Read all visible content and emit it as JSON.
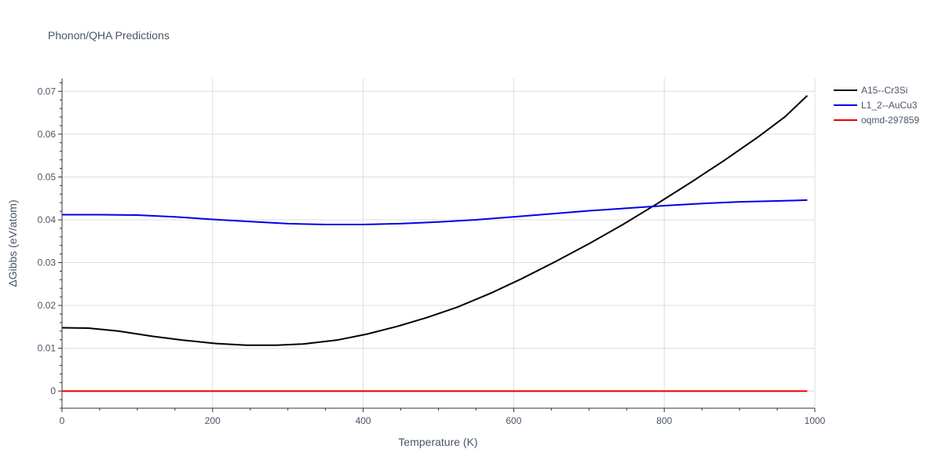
{
  "chart_data": {
    "type": "line",
    "title": "Phonon/QHA Predictions",
    "xlabel": "Temperature (K)",
    "ylabel": "ΔGibbs (eV/atom)",
    "xlim": [
      0,
      1000
    ],
    "ylim": [
      -0.004,
      0.073
    ],
    "x_ticks": [
      0,
      200,
      400,
      600,
      800,
      1000
    ],
    "y_ticks": [
      0,
      0.01,
      0.02,
      0.03,
      0.04,
      0.05,
      0.06,
      0.07
    ],
    "y_tick_labels": [
      "0",
      "0.01",
      "0.02",
      "0.03",
      "0.04",
      "0.05",
      "0.06",
      "0.07"
    ],
    "grid": true,
    "legend_position": "top-right",
    "series": [
      {
        "name": "A15--Cr3Si",
        "color": "#000000",
        "x": [
          0,
          35,
          75,
          120,
          160,
          205,
          245,
          285,
          320,
          365,
          405,
          445,
          485,
          525,
          570,
          610,
          655,
          700,
          745,
          790,
          835,
          880,
          925,
          960,
          990
        ],
        "y": [
          0.0148,
          0.0147,
          0.014,
          0.0128,
          0.0119,
          0.0111,
          0.0107,
          0.0107,
          0.011,
          0.0119,
          0.0133,
          0.0151,
          0.0172,
          0.0196,
          0.0229,
          0.0262,
          0.0302,
          0.0344,
          0.0389,
          0.0437,
          0.0487,
          0.0539,
          0.0594,
          0.064,
          0.069
        ]
      },
      {
        "name": "L1_2--AuCu3",
        "color": "#0000ee",
        "x": [
          0,
          50,
          100,
          150,
          200,
          250,
          300,
          350,
          400,
          450,
          500,
          550,
          600,
          650,
          700,
          750,
          800,
          850,
          900,
          950,
          990
        ],
        "y": [
          0.0412,
          0.0412,
          0.0411,
          0.0407,
          0.0401,
          0.0396,
          0.0391,
          0.0389,
          0.0389,
          0.0391,
          0.0395,
          0.04,
          0.0407,
          0.0414,
          0.0421,
          0.0427,
          0.0433,
          0.0438,
          0.0442,
          0.0444,
          0.0446
        ]
      },
      {
        "name": "oqmd-297859",
        "color": "#ee0000",
        "x": [
          0,
          990
        ],
        "y": [
          0,
          0
        ]
      }
    ]
  }
}
